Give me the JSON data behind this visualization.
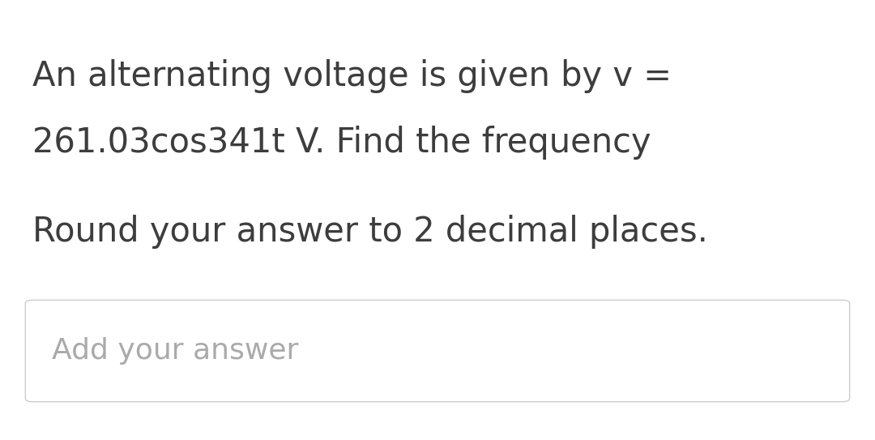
{
  "background_color": "#ffffff",
  "line1": "An alternating voltage is given by v =",
  "line2": "261.03cos341t V. Find the frequency",
  "line3": "Round your answer to 2 decimal places.",
  "placeholder": "Add your answer",
  "main_text_color": "#3d3d3d",
  "placeholder_color": "#aaaaaa",
  "main_fontsize": 30,
  "placeholder_fontsize": 26,
  "box_border_color": "#cccccc",
  "box_bg_color": "#ffffff"
}
